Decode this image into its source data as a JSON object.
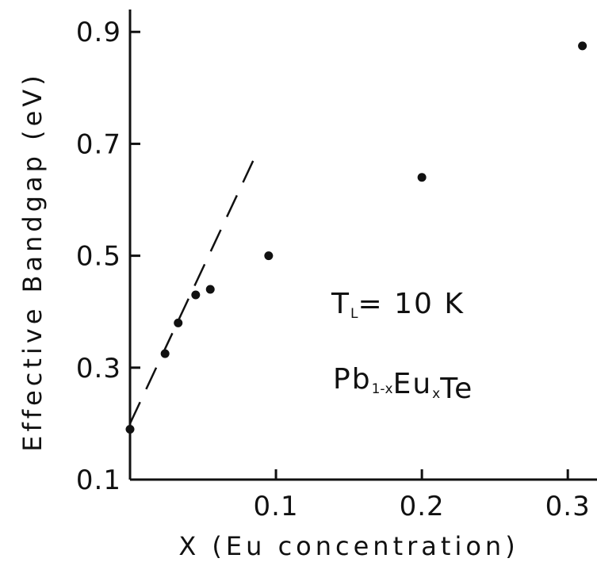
{
  "chart_data": {
    "type": "scatter",
    "title": "",
    "xlabel": "X (Eu concentration)",
    "ylabel": "Effective Bandgap (eV)",
    "xlim": [
      0.0,
      0.32
    ],
    "ylim": [
      0.1,
      0.94
    ],
    "xticks": [
      {
        "value": 0.1,
        "label": "0.1"
      },
      {
        "value": 0.2,
        "label": "0.2"
      },
      {
        "value": 0.3,
        "label": "0.3"
      }
    ],
    "yticks": [
      {
        "value": 0.1,
        "label": "0.1"
      },
      {
        "value": 0.3,
        "label": "0.3"
      },
      {
        "value": 0.5,
        "label": "0.5"
      },
      {
        "value": 0.7,
        "label": "0.7"
      },
      {
        "value": 0.9,
        "label": "0.9"
      }
    ],
    "grid": false,
    "legend": "none",
    "series": [
      {
        "points": [
          {
            "x": 0.0,
            "y": 0.19
          },
          {
            "x": 0.024,
            "y": 0.325
          },
          {
            "x": 0.033,
            "y": 0.38
          },
          {
            "x": 0.045,
            "y": 0.43
          },
          {
            "x": 0.055,
            "y": 0.44
          },
          {
            "x": 0.095,
            "y": 0.5
          },
          {
            "x": 0.2,
            "y": 0.64
          },
          {
            "x": 0.31,
            "y": 0.875
          }
        ]
      }
    ],
    "fit_line": {
      "style": "dashed",
      "start": {
        "x": 0.0,
        "y": 0.2
      },
      "end": {
        "x": 0.088,
        "y": 0.69
      }
    },
    "annotations": {
      "temperature": {
        "main": "T",
        "subscript": "L",
        "rest": "= 10 K"
      },
      "material": {
        "parts": [
          {
            "text": "Pb",
            "sub": "1-x"
          },
          {
            "text": "Eu",
            "sub": "x"
          },
          {
            "text": "Te",
            "sub": ""
          }
        ]
      }
    }
  }
}
